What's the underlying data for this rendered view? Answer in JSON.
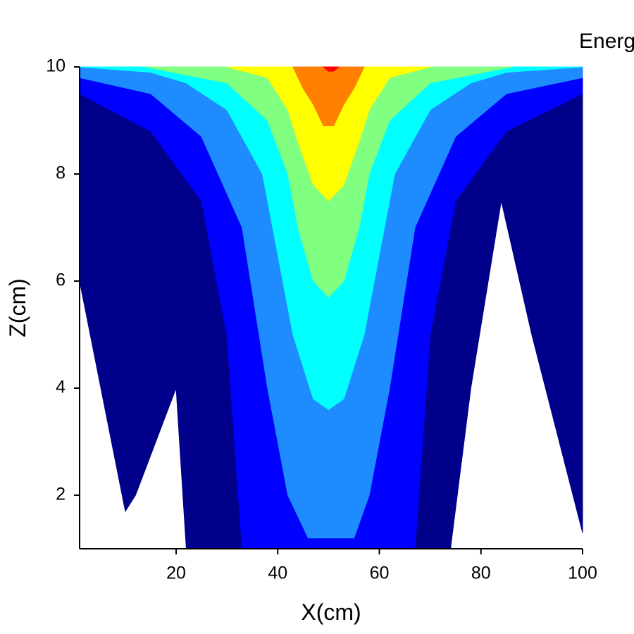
{
  "chart_data": {
    "type": "contour",
    "title": "Energ",
    "xlabel": "X(cm)",
    "ylabel": "Z(cm)",
    "xlim": [
      1,
      100
    ],
    "ylim": [
      1,
      10
    ],
    "xticks": [
      20,
      40,
      60,
      80,
      100
    ],
    "yticks": [
      2,
      4,
      6,
      8,
      10
    ],
    "series": [
      {
        "color": "#00008b",
        "x": [
          1,
          100,
          100,
          90,
          84,
          78,
          74,
          22,
          20,
          12,
          10,
          1,
          1
        ],
        "y": [
          10,
          10,
          1.3,
          5,
          7.5,
          4,
          1,
          1,
          4,
          2,
          1.7,
          6,
          10
        ]
      },
      {
        "color": "#0000ff",
        "x": [
          1,
          15,
          25,
          30,
          33,
          67,
          70,
          75,
          85,
          100,
          100,
          1
        ],
        "y": [
          9.5,
          8.8,
          7.5,
          5,
          1,
          1,
          5,
          7.5,
          8.8,
          9.5,
          10,
          10
        ]
      },
      {
        "color": "#1e8cff",
        "x": [
          1,
          15,
          25,
          33,
          38,
          42,
          46,
          55,
          58,
          62,
          67,
          75,
          85,
          100,
          100,
          1
        ],
        "y": [
          9.8,
          9.5,
          8.7,
          7,
          4,
          2,
          1.2,
          1.2,
          2,
          4,
          7,
          8.7,
          9.5,
          9.8,
          10,
          10
        ]
      },
      {
        "color": "#00ffff",
        "x": [
          1,
          15,
          22,
          30,
          37,
          40,
          43,
          47,
          50,
          53,
          57,
          60,
          63,
          70,
          78,
          85,
          100
        ],
        "y": [
          10,
          9.9,
          9.7,
          9.2,
          8,
          6.5,
          5,
          3.8,
          3.6,
          3.8,
          5,
          6.5,
          8,
          9.2,
          9.7,
          9.9,
          10
        ]
      },
      {
        "color": "#80ff80",
        "x": [
          14,
          30,
          38,
          42,
          44,
          47,
          50,
          53,
          56,
          58,
          62,
          70,
          86
        ],
        "y": [
          10,
          9.7,
          9,
          8,
          7,
          6,
          5.7,
          6,
          7,
          8,
          9,
          9.7,
          10
        ]
      },
      {
        "color": "#ffff00",
        "x": [
          30,
          38,
          42,
          44,
          47,
          50,
          53,
          56,
          58,
          62,
          70
        ],
        "y": [
          10,
          9.8,
          9.2,
          8.6,
          7.8,
          7.5,
          7.8,
          8.6,
          9.2,
          9.8,
          10
        ]
      },
      {
        "color": "#ff8000",
        "x": [
          43,
          45,
          47,
          49,
          51,
          53,
          55,
          57
        ],
        "y": [
          10,
          9.6,
          9.3,
          8.9,
          8.9,
          9.3,
          9.6,
          10
        ]
      },
      {
        "color": "#ff0000",
        "x": [
          49,
          50,
          51,
          52
        ],
        "y": [
          10,
          9.92,
          9.92,
          10
        ]
      }
    ]
  }
}
